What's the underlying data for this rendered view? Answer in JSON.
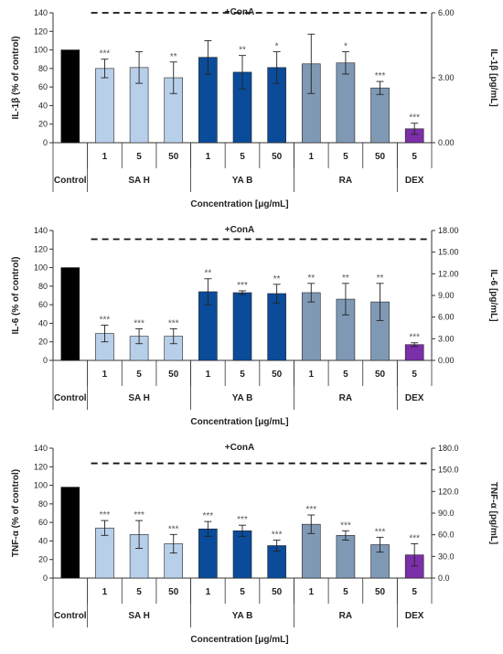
{
  "chart_data": [
    {
      "type": "bar",
      "annotation": "+ConA",
      "ylabel": "IL-1β  (% of control)",
      "ylabel2": "IL-1β [pg/mL]",
      "xlabel": "Concentration [μg/mL]",
      "ylim": [
        0,
        140
      ],
      "yticks": [
        "0",
        "20",
        "40",
        "60",
        "80",
        "100",
        "120",
        "140"
      ],
      "y2ticks": [
        "0.00",
        "3.00",
        "6.00"
      ],
      "y2lim": [
        0,
        6
      ],
      "conA_line": 6,
      "categories": [
        "Control",
        "1",
        "5",
        "50",
        "1",
        "5",
        "50",
        "1",
        "5",
        "50",
        "5"
      ],
      "groups": [
        {
          "label": "",
          "count": 1
        },
        {
          "label": "SA H",
          "count": 3
        },
        {
          "label": "YA B",
          "count": 3
        },
        {
          "label": "RA",
          "count": 3
        },
        {
          "label": "DEX",
          "count": 1
        }
      ],
      "values": [
        100,
        80,
        81,
        70,
        92,
        76,
        81,
        85,
        86,
        59,
        15
      ],
      "errors": [
        0,
        10,
        17,
        17,
        18,
        18,
        17,
        32,
        12,
        7,
        6
      ],
      "significance": [
        "",
        "***",
        "",
        "**",
        "",
        "**",
        "*",
        "",
        "*",
        "***",
        "***"
      ]
    },
    {
      "type": "bar",
      "annotation": "+ConA",
      "ylabel": "IL-6  (% of control)",
      "ylabel2": "IL-6  [pg/mL]",
      "xlabel": "Concentration [μg/mL]",
      "ylim": [
        0,
        140
      ],
      "yticks": [
        "0",
        "20",
        "40",
        "60",
        "80",
        "100",
        "120",
        "140"
      ],
      "y2ticks": [
        "0.00",
        "3.00",
        "6.00",
        "9.00",
        "12.00",
        "15.00",
        "18.00"
      ],
      "y2lim": [
        0,
        18
      ],
      "conA_line": 16.8,
      "categories": [
        "Control",
        "1",
        "5",
        "50",
        "1",
        "5",
        "50",
        "1",
        "5",
        "50",
        "5"
      ],
      "groups": [
        {
          "label": "",
          "count": 1
        },
        {
          "label": "SA H",
          "count": 3
        },
        {
          "label": "YA B",
          "count": 3
        },
        {
          "label": "RA",
          "count": 3
        },
        {
          "label": "DEX",
          "count": 1
        }
      ],
      "values": [
        100,
        29,
        26,
        26,
        74,
        73,
        72,
        73,
        66,
        63,
        17
      ],
      "errors": [
        0,
        9,
        8,
        8,
        14,
        2,
        10,
        10,
        17,
        20,
        2
      ],
      "significance": [
        "",
        "***",
        "***",
        "***",
        "**",
        "***",
        "**",
        "**",
        "**",
        "**",
        "***"
      ]
    },
    {
      "type": "bar",
      "annotation": "+ConA",
      "ylabel": "TNF-α  (% of control)",
      "ylabel2": "TNF-α  [pg/mL]",
      "xlabel": "Concentration [μg/mL]",
      "ylim": [
        0,
        140
      ],
      "yticks": [
        "0",
        "20",
        "40",
        "60",
        "80",
        "100",
        "120",
        "140"
      ],
      "y2ticks": [
        "0.0",
        "30.0",
        "60.0",
        "90.0",
        "120.0",
        "150.0",
        "180.0"
      ],
      "y2lim": [
        0,
        180
      ],
      "conA_line": 159,
      "categories": [
        "Control",
        "1",
        "5",
        "50",
        "1",
        "5",
        "50",
        "1",
        "5",
        "50",
        "5"
      ],
      "groups": [
        {
          "label": "",
          "count": 1
        },
        {
          "label": "SA H",
          "count": 3
        },
        {
          "label": "YA B",
          "count": 3
        },
        {
          "label": "RA",
          "count": 3
        },
        {
          "label": "DEX",
          "count": 1
        }
      ],
      "values": [
        98,
        54,
        47,
        37,
        53,
        51,
        35,
        58,
        46,
        36,
        25
      ],
      "errors": [
        0,
        8,
        15,
        10,
        8,
        6,
        6,
        10,
        5,
        8,
        12
      ],
      "significance": [
        "",
        "***",
        "***",
        "***",
        "***",
        "***",
        "***",
        "***",
        "***",
        "***",
        "***"
      ]
    }
  ],
  "colors": {
    "control": "#000000",
    "sa_h": "#b8cfe9",
    "ya_b": "#0a4c9a",
    "ra": "#7f99b5",
    "dex": "#7b2fa8"
  }
}
